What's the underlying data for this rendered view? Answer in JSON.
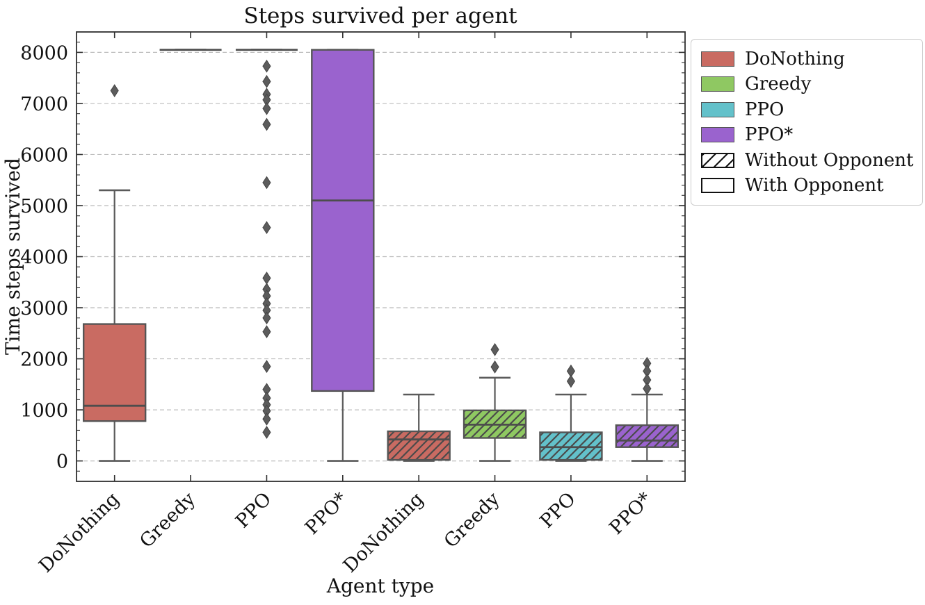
{
  "chart_data": {
    "type": "boxplot",
    "title": "Steps survived per agent",
    "xlabel": "Agent type",
    "ylabel": "Time steps survived",
    "ylim": [
      -400,
      8400
    ],
    "yticks": [
      0,
      1000,
      2000,
      3000,
      4000,
      5000,
      6000,
      7000,
      8000
    ],
    "ytick_labels": [
      "0",
      "1000",
      "2000",
      "3000",
      "4000",
      "5000",
      "6000",
      "7000",
      "8000"
    ],
    "yminor_step": 200,
    "grid": "dashed-horizontal",
    "categories": [
      "DoNothing",
      "Greedy",
      "PPO",
      "PPO*",
      "DoNothing",
      "Greedy",
      "PPO",
      "PPO*"
    ],
    "boxes": [
      {
        "label": "DoNothing",
        "group": "With Opponent",
        "color": "#C96B62",
        "hatch": false,
        "whislo": 0,
        "q1": 780,
        "med": 1080,
        "q3": 2680,
        "whishi": 5300,
        "fliers": [
          7250
        ]
      },
      {
        "label": "Greedy",
        "group": "With Opponent",
        "color": "#8FC862",
        "hatch": false,
        "whislo": 8050,
        "q1": 8050,
        "med": 8050,
        "q3": 8050,
        "whishi": 8050,
        "fliers": []
      },
      {
        "label": "PPO",
        "group": "With Opponent",
        "color": "#63C1CA",
        "hatch": false,
        "whislo": 8050,
        "q1": 8050,
        "med": 8050,
        "q3": 8050,
        "whishi": 8050,
        "fliers": [
          7730,
          7430,
          7180,
          7070,
          6900,
          6590,
          5450,
          4570,
          3580,
          3360,
          3230,
          3080,
          2950,
          2800,
          2530,
          1850,
          1400,
          1230,
          1100,
          980,
          820,
          560
        ]
      },
      {
        "label": "PPO*",
        "group": "With Opponent",
        "color": "#9A63CE",
        "hatch": false,
        "whislo": 0,
        "q1": 1370,
        "med": 5100,
        "q3": 8050,
        "whishi": 8050,
        "fliers": []
      },
      {
        "label": "DoNothing",
        "group": "Without Opponent",
        "color": "#C96B62",
        "hatch": true,
        "whislo": 0,
        "q1": 20,
        "med": 420,
        "q3": 580,
        "whishi": 1300,
        "fliers": []
      },
      {
        "label": "Greedy",
        "group": "Without Opponent",
        "color": "#8FC862",
        "hatch": true,
        "whislo": 0,
        "q1": 450,
        "med": 710,
        "q3": 990,
        "whishi": 1630,
        "fliers": [
          2180,
          1840
        ]
      },
      {
        "label": "PPO",
        "group": "Without Opponent",
        "color": "#63C1CA",
        "hatch": true,
        "whislo": 0,
        "q1": 20,
        "med": 270,
        "q3": 560,
        "whishi": 1300,
        "fliers": [
          1760,
          1560
        ]
      },
      {
        "label": "PPO*",
        "group": "Without Opponent",
        "color": "#9A63CE",
        "hatch": true,
        "whislo": 0,
        "q1": 270,
        "med": 400,
        "q3": 700,
        "whishi": 1300,
        "fliers": [
          1910,
          1760,
          1585,
          1415
        ]
      }
    ],
    "legend": [
      {
        "label": "DoNothing",
        "color": "#C96B62",
        "hatch": false,
        "black_edge": false
      },
      {
        "label": "Greedy",
        "color": "#8FC862",
        "hatch": false,
        "black_edge": false
      },
      {
        "label": "PPO",
        "color": "#63C1CA",
        "hatch": false,
        "black_edge": false
      },
      {
        "label": "PPO*",
        "color": "#9A63CE",
        "hatch": false,
        "black_edge": false
      },
      {
        "label": "Without Opponent",
        "color": "#FFFFFF",
        "hatch": true,
        "black_edge": true
      },
      {
        "label": "With Opponent",
        "color": "#FFFFFF",
        "hatch": false,
        "black_edge": true
      }
    ],
    "style_colors": {
      "box_edge": "#555555",
      "median": "#4d4d4d",
      "whisker": "#5a5a5a",
      "flier_fill": "#5c5c5c",
      "flier_edge": "#454545",
      "gridline": "#bbbbbb",
      "spine": "#2f2f2f",
      "hatch_line": "#4a4a4a"
    }
  }
}
